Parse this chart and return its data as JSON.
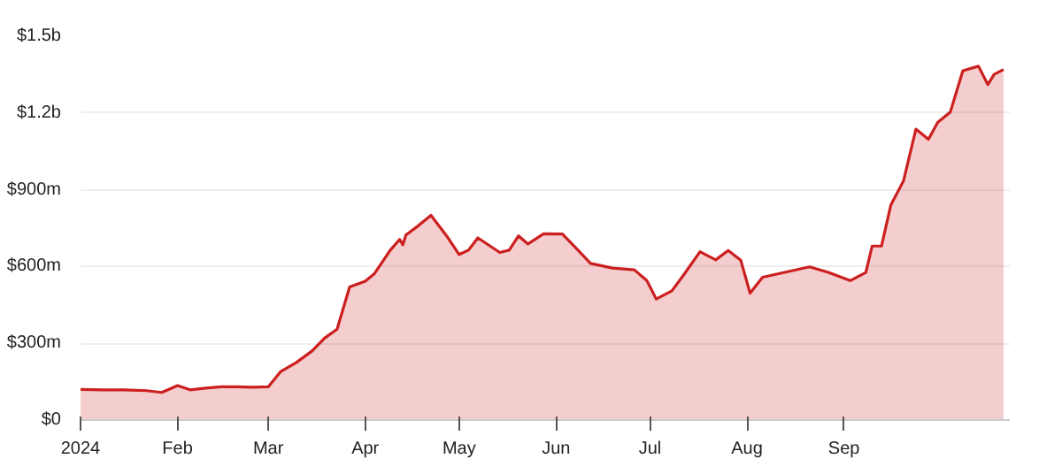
{
  "chart_data": {
    "type": "area",
    "x": [
      "2024-01-01",
      "2024-01-08",
      "2024-01-15",
      "2024-01-22",
      "2024-01-27",
      "2024-02-01",
      "2024-02-05",
      "2024-02-10",
      "2024-02-15",
      "2024-02-20",
      "2024-02-25",
      "2024-03-01",
      "2024-03-05",
      "2024-03-10",
      "2024-03-15",
      "2024-03-19",
      "2024-03-23",
      "2024-03-27",
      "2024-04-01",
      "2024-04-04",
      "2024-04-09",
      "2024-04-12",
      "2024-04-13",
      "2024-04-14",
      "2024-04-18",
      "2024-04-22",
      "2024-04-27",
      "2024-05-01",
      "2024-05-04",
      "2024-05-07",
      "2024-05-14",
      "2024-05-17",
      "2024-05-20",
      "2024-05-23",
      "2024-05-28",
      "2024-06-03",
      "2024-06-08",
      "2024-06-12",
      "2024-06-19",
      "2024-06-26",
      "2024-06-30",
      "2024-07-03",
      "2024-07-08",
      "2024-07-12",
      "2024-07-17",
      "2024-07-22",
      "2024-07-26",
      "2024-07-30",
      "2024-08-02",
      "2024-08-06",
      "2024-08-13",
      "2024-08-21",
      "2024-08-27",
      "2024-09-03",
      "2024-09-08",
      "2024-09-10",
      "2024-09-13",
      "2024-09-16",
      "2024-09-20",
      "2024-09-24",
      "2024-09-28",
      "2024-10-01",
      "2024-10-05",
      "2024-10-09",
      "2024-10-14",
      "2024-10-17",
      "2024-10-19",
      "2024-10-22"
    ],
    "series": [
      {
        "color": "#cc1f1f",
        "values": [
          120000000,
          118000000,
          118000000,
          115000000,
          108000000,
          135000000,
          118000000,
          125000000,
          130000000,
          130000000,
          128000000,
          130000000,
          190000000,
          225000000,
          270000000,
          320000000,
          355000000,
          520000000,
          543000000,
          573000000,
          664000000,
          706000000,
          685000000,
          723000000,
          760000000,
          800000000,
          720000000,
          647000000,
          664000000,
          712000000,
          655000000,
          664000000,
          720000000,
          688000000,
          728000000,
          727000000,
          664000000,
          612000000,
          594000000,
          587000000,
          545000000,
          473000000,
          505000000,
          571000000,
          658000000,
          626000000,
          663000000,
          625000000,
          496000000,
          558000000,
          577000000,
          599000000,
          577000000,
          545000000,
          577000000,
          680000000,
          680000000,
          841000000,
          934000000,
          1137000000,
          1097000000,
          1164000000,
          1204000000,
          1365000000,
          1383000000,
          1311000000,
          1351000000,
          1370000000
        ]
      }
    ],
    "xlim": [
      "2024-01-01",
      "2024-10-24"
    ],
    "xticks": [
      {
        "value": "2024-01-01",
        "label": "2024"
      },
      {
        "value": "2024-02-01",
        "label": "Feb"
      },
      {
        "value": "2024-03-01",
        "label": "Mar"
      },
      {
        "value": "2024-04-01",
        "label": "Apr"
      },
      {
        "value": "2024-05-01",
        "label": "May"
      },
      {
        "value": "2024-06-01",
        "label": "Jun"
      },
      {
        "value": "2024-07-01",
        "label": "Jul"
      },
      {
        "value": "2024-08-01",
        "label": "Aug"
      },
      {
        "value": "2024-09-01",
        "label": "Sep"
      }
    ],
    "ylim": [
      0,
      1500000000
    ],
    "yticks": [
      {
        "value": 0,
        "label": "$0"
      },
      {
        "value": 300000000,
        "label": "$300m"
      },
      {
        "value": 600000000,
        "label": "$600m"
      },
      {
        "value": 900000000,
        "label": "$900m"
      },
      {
        "value": 1200000000,
        "label": "$1.2b"
      },
      {
        "value": 1500000000,
        "label": "$1.5b"
      }
    ],
    "grid": "y"
  }
}
